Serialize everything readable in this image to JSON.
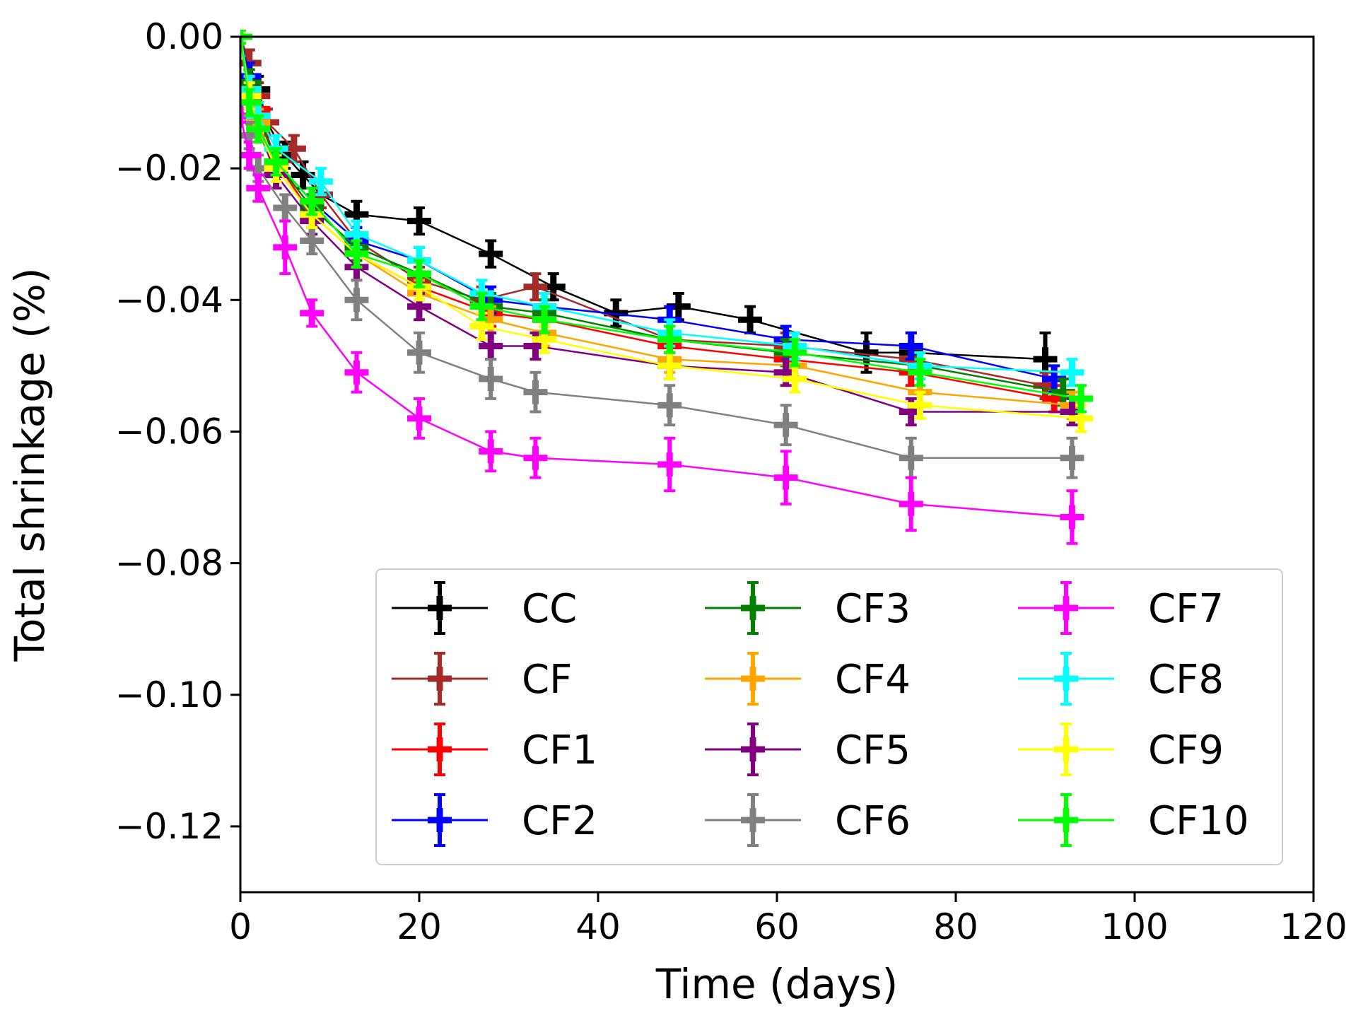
{
  "chart_data": {
    "type": "line",
    "title": "",
    "xlabel": "Time (days)",
    "ylabel": "Total shrinkage (%)",
    "xlim": [
      0,
      120
    ],
    "ylim": [
      -0.13,
      0.0
    ],
    "xticks": [
      0,
      20,
      40,
      60,
      80,
      100,
      120
    ],
    "xtick_labels": [
      "0",
      "20",
      "40",
      "60",
      "80",
      "100",
      "120"
    ],
    "yticks": [
      0.0,
      -0.02,
      -0.04,
      -0.06,
      -0.08,
      -0.1,
      -0.12
    ],
    "ytick_labels": [
      "0.00",
      "−0.02",
      "−0.04",
      "−0.06",
      "−0.08",
      "−0.10",
      "−0.12"
    ],
    "grid": false,
    "legend_position": "lower-right",
    "legend_columns": 3,
    "series": [
      {
        "name": "CC",
        "color": "#000000",
        "x": [
          0,
          1,
          2,
          3,
          5,
          7,
          9,
          13,
          20,
          28,
          35,
          42,
          49,
          57,
          70,
          75,
          90
        ],
        "y": [
          0,
          -0.004,
          -0.008,
          -0.013,
          -0.018,
          -0.021,
          -0.024,
          -0.027,
          -0.028,
          -0.033,
          -0.038,
          -0.042,
          -0.041,
          -0.043,
          -0.048,
          -0.048,
          -0.049
        ],
        "err": [
          0.001,
          0.002,
          0.002,
          0.002,
          0.002,
          0.002,
          0.002,
          0.002,
          0.002,
          0.002,
          0.002,
          0.002,
          0.002,
          0.002,
          0.003,
          0.003,
          0.004
        ]
      },
      {
        "name": "CF",
        "color": "#a52a2a",
        "x": [
          0,
          1,
          2,
          3,
          6,
          9,
          13,
          20,
          27,
          33,
          48,
          61,
          75,
          90
        ],
        "y": [
          0,
          -0.004,
          -0.009,
          -0.013,
          -0.017,
          -0.024,
          -0.031,
          -0.037,
          -0.04,
          -0.038,
          -0.046,
          -0.047,
          -0.049,
          -0.053
        ],
        "err": [
          0.001,
          0.002,
          0.002,
          0.002,
          0.002,
          0.002,
          0.002,
          0.002,
          0.002,
          0.002,
          0.002,
          0.002,
          0.002,
          0.002
        ]
      },
      {
        "name": "CF1",
        "color": "#ff0000",
        "x": [
          0,
          1,
          2,
          4,
          8,
          13,
          20,
          28,
          34,
          48,
          61,
          75,
          91
        ],
        "y": [
          0,
          -0.007,
          -0.011,
          -0.019,
          -0.027,
          -0.033,
          -0.038,
          -0.042,
          -0.043,
          -0.047,
          -0.049,
          -0.051,
          -0.055
        ],
        "err": [
          0.001,
          0.002,
          0.002,
          0.002,
          0.002,
          0.002,
          0.002,
          0.002,
          0.002,
          0.002,
          0.002,
          0.002,
          0.002
        ]
      },
      {
        "name": "CF2",
        "color": "#0000ff",
        "x": [
          0,
          1,
          2,
          4,
          8,
          13,
          20,
          28,
          34,
          48,
          61,
          75,
          91
        ],
        "y": [
          0,
          -0.006,
          -0.012,
          -0.019,
          -0.025,
          -0.031,
          -0.034,
          -0.04,
          -0.041,
          -0.043,
          -0.046,
          -0.047,
          -0.052
        ],
        "err": [
          0.001,
          0.002,
          0.002,
          0.002,
          0.002,
          0.002,
          0.002,
          0.002,
          0.002,
          0.002,
          0.002,
          0.002,
          0.002
        ]
      },
      {
        "name": "CF3",
        "color": "#008000",
        "x": [
          0,
          1,
          2,
          4,
          8,
          13,
          20,
          28,
          34,
          48,
          61,
          76,
          92
        ],
        "y": [
          0,
          -0.007,
          -0.012,
          -0.019,
          -0.026,
          -0.032,
          -0.036,
          -0.041,
          -0.042,
          -0.046,
          -0.048,
          -0.05,
          -0.054
        ],
        "err": [
          0.001,
          0.002,
          0.002,
          0.002,
          0.002,
          0.002,
          0.002,
          0.002,
          0.002,
          0.002,
          0.002,
          0.002,
          0.002
        ]
      },
      {
        "name": "CF4",
        "color": "#ffa500",
        "x": [
          0,
          1,
          2,
          4,
          8,
          13,
          20,
          28,
          34,
          48,
          62,
          76,
          93
        ],
        "y": [
          0,
          -0.008,
          -0.013,
          -0.02,
          -0.027,
          -0.033,
          -0.039,
          -0.043,
          -0.045,
          -0.049,
          -0.05,
          -0.054,
          -0.056
        ],
        "err": [
          0.001,
          0.002,
          0.002,
          0.002,
          0.002,
          0.002,
          0.002,
          0.002,
          0.002,
          0.002,
          0.002,
          0.002,
          0.002
        ]
      },
      {
        "name": "CF5",
        "color": "#800080",
        "x": [
          0,
          1,
          2,
          4,
          8,
          13,
          20,
          28,
          33,
          48,
          61,
          75,
          93
        ],
        "y": [
          0,
          -0.009,
          -0.014,
          -0.021,
          -0.028,
          -0.035,
          -0.041,
          -0.047,
          -0.047,
          -0.05,
          -0.051,
          -0.057,
          -0.057
        ],
        "err": [
          0.001,
          0.002,
          0.002,
          0.002,
          0.002,
          0.002,
          0.002,
          0.002,
          0.002,
          0.002,
          0.002,
          0.002,
          0.002
        ]
      },
      {
        "name": "CF6",
        "color": "#808080",
        "x": [
          0,
          1,
          2,
          5,
          8,
          13,
          20,
          28,
          33,
          48,
          61,
          75,
          93
        ],
        "y": [
          -0.01,
          -0.015,
          -0.02,
          -0.026,
          -0.031,
          -0.04,
          -0.048,
          -0.052,
          -0.054,
          -0.056,
          -0.059,
          -0.064,
          -0.064
        ],
        "err": [
          0.001,
          0.002,
          0.002,
          0.002,
          0.002,
          0.003,
          0.003,
          0.003,
          0.003,
          0.003,
          0.003,
          0.003,
          0.003
        ]
      },
      {
        "name": "CF7",
        "color": "#ff00ff",
        "x": [
          0,
          1,
          2,
          5,
          8,
          13,
          20,
          28,
          33,
          48,
          61,
          75,
          93
        ],
        "y": [
          -0.012,
          -0.018,
          -0.023,
          -0.032,
          -0.042,
          -0.051,
          -0.058,
          -0.063,
          -0.064,
          -0.065,
          -0.067,
          -0.071,
          -0.073
        ],
        "err": [
          0.001,
          0.002,
          0.002,
          0.004,
          0.002,
          0.003,
          0.003,
          0.003,
          0.003,
          0.004,
          0.004,
          0.004,
          0.004
        ]
      },
      {
        "name": "CF8",
        "color": "#00ffff",
        "x": [
          0,
          1,
          2,
          4,
          9,
          13,
          20,
          27,
          34,
          48,
          62,
          76,
          93
        ],
        "y": [
          0,
          -0.008,
          -0.012,
          -0.017,
          -0.022,
          -0.03,
          -0.034,
          -0.039,
          -0.041,
          -0.045,
          -0.047,
          -0.05,
          -0.051
        ],
        "err": [
          0.001,
          0.002,
          0.002,
          0.002,
          0.002,
          0.002,
          0.002,
          0.002,
          0.002,
          0.002,
          0.002,
          0.002,
          0.002
        ]
      },
      {
        "name": "CF9",
        "color": "#ffff00",
        "x": [
          0,
          1,
          2,
          4,
          8,
          13,
          20,
          27,
          34,
          48,
          62,
          76,
          94
        ],
        "y": [
          0,
          -0.009,
          -0.014,
          -0.02,
          -0.027,
          -0.033,
          -0.038,
          -0.044,
          -0.046,
          -0.05,
          -0.052,
          -0.056,
          -0.058
        ],
        "err": [
          0.001,
          0.002,
          0.002,
          0.002,
          0.002,
          0.002,
          0.002,
          0.002,
          0.002,
          0.002,
          0.002,
          0.002,
          0.002
        ]
      },
      {
        "name": "CF10",
        "color": "#00ff00",
        "x": [
          0,
          1,
          2,
          4,
          8,
          13,
          20,
          27,
          34,
          48,
          62,
          76,
          94
        ],
        "y": [
          0,
          -0.01,
          -0.014,
          -0.019,
          -0.025,
          -0.033,
          -0.036,
          -0.041,
          -0.043,
          -0.046,
          -0.048,
          -0.051,
          -0.055
        ],
        "err": [
          0.001,
          0.002,
          0.002,
          0.002,
          0.002,
          0.002,
          0.002,
          0.002,
          0.002,
          0.002,
          0.002,
          0.002,
          0.002
        ]
      }
    ]
  }
}
